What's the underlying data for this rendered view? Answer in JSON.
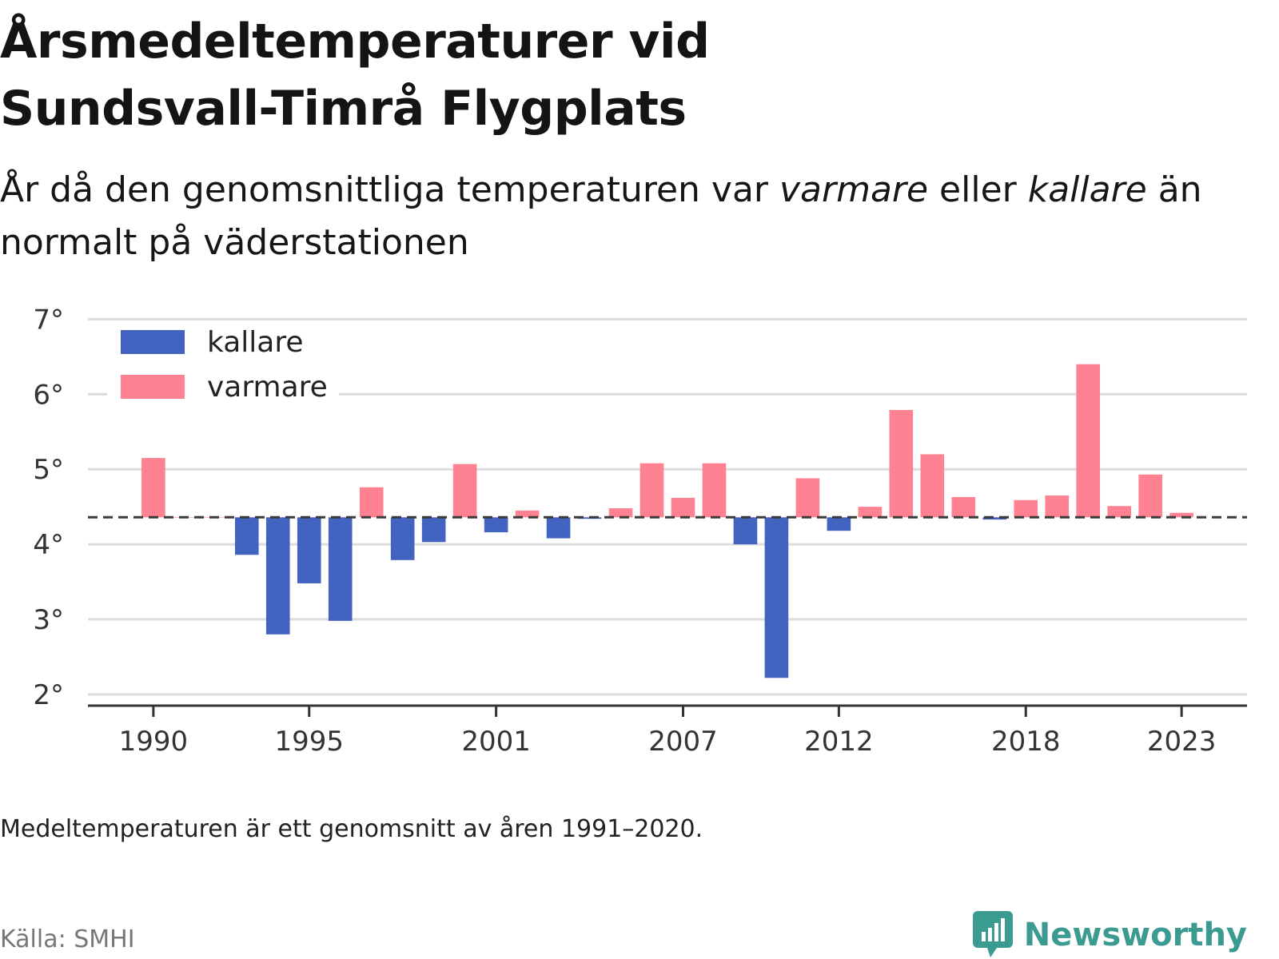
{
  "title_line1": "Årsmedeltemperaturer vid",
  "title_line2": "Sundsvall-Timrå Flygplats",
  "subtitle": {
    "part1": "År då den genomsnittliga temperaturen var ",
    "warm_word": "varmare",
    "part2": " eller ",
    "cold_word": "kallare",
    "part3": " än normalt på väderstationen"
  },
  "note": "Medeltemperaturen är ett genomsnitt av åren 1991–2020.",
  "source": "Källa: SMHI",
  "brand": {
    "name": "Newsworthy",
    "icon": "newsworthy-logo-icon",
    "color": "#3b9b91"
  },
  "chart_data": {
    "type": "bar",
    "title": "Årsmedeltemperaturer vid Sundsvall-Timrå Flygplats",
    "baseline": 4.36,
    "baseline_style": "dashed",
    "ylim": [
      1.85,
      7.1
    ],
    "yticks": [
      2,
      3,
      4,
      5,
      6,
      7
    ],
    "ytick_labels": [
      "2°",
      "3°",
      "4°",
      "5°",
      "6°",
      "7°"
    ],
    "xlim": [
      1987.9,
      2025.1
    ],
    "xticks": [
      1990,
      1995,
      2001,
      2007,
      2012,
      2018,
      2023
    ],
    "xtick_labels": [
      "1990",
      "1995",
      "2001",
      "2007",
      "2012",
      "2018",
      "2023"
    ],
    "grid": true,
    "legend_position": "top-left",
    "series": [
      {
        "name": "kallare",
        "color": "#4263bf"
      },
      {
        "name": "varmare",
        "color": "#fe8291"
      }
    ],
    "years": [
      1990,
      1991,
      1992,
      1993,
      1994,
      1995,
      1996,
      1997,
      1998,
      1999,
      2000,
      2001,
      2002,
      2003,
      2004,
      2005,
      2006,
      2007,
      2008,
      2009,
      2010,
      2011,
      2012,
      2013,
      2014,
      2015,
      2016,
      2017,
      2018,
      2019,
      2020,
      2021,
      2022,
      2023
    ],
    "values": [
      5.15,
      4.36,
      4.36,
      3.86,
      2.8,
      3.48,
      2.98,
      4.76,
      3.79,
      4.03,
      5.07,
      4.16,
      4.45,
      4.08,
      4.34,
      4.48,
      5.08,
      4.62,
      5.08,
      4.0,
      2.22,
      4.88,
      4.18,
      4.5,
      5.79,
      5.2,
      4.63,
      4.33,
      4.59,
      4.65,
      6.4,
      4.51,
      4.93,
      4.42
    ]
  }
}
